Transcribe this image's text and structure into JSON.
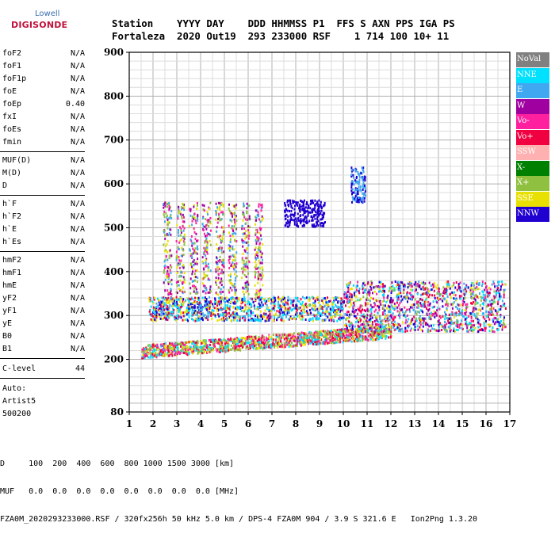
{
  "logo": {
    "line1": "Lowell",
    "line2": "DIGISONDE"
  },
  "header": {
    "line1": "Station    YYYY DAY    DDD HHMMSS P1  FFS S AXN PPS IGA PS",
    "line2": "Fortaleza  2020 Out19  293 233000 RSF    1 714 100 10+ 11"
  },
  "params": {
    "group1": [
      {
        "label": "foF2",
        "value": "N/A"
      },
      {
        "label": "foF1",
        "value": "N/A"
      },
      {
        "label": "foF1p",
        "value": "N/A"
      },
      {
        "label": "foE",
        "value": "N/A"
      },
      {
        "label": "foEp",
        "value": "0.40"
      },
      {
        "label": "fxI",
        "value": "N/A"
      },
      {
        "label": "foEs",
        "value": "N/A"
      },
      {
        "label": "fmin",
        "value": "N/A"
      }
    ],
    "group2": [
      {
        "label": "MUF(D)",
        "value": "N/A"
      },
      {
        "label": "M(D)",
        "value": "N/A"
      },
      {
        "label": "D",
        "value": "N/A"
      }
    ],
    "group3": [
      {
        "label": "h`F",
        "value": "N/A"
      },
      {
        "label": "h`F2",
        "value": "N/A"
      },
      {
        "label": "h`E",
        "value": "N/A"
      },
      {
        "label": "h`Es",
        "value": "N/A"
      }
    ],
    "group4": [
      {
        "label": "hmF2",
        "value": "N/A"
      },
      {
        "label": "hmF1",
        "value": "N/A"
      },
      {
        "label": "hmE",
        "value": "N/A"
      },
      {
        "label": "yF2",
        "value": "N/A"
      },
      {
        "label": "yF1",
        "value": "N/A"
      },
      {
        "label": "yE",
        "value": "N/A"
      },
      {
        "label": "B0",
        "value": "N/A"
      },
      {
        "label": "B1",
        "value": "N/A"
      }
    ],
    "clevel": {
      "label": "C-level",
      "value": "44"
    },
    "auto": [
      "Auto:",
      "Artist5",
      "500200"
    ]
  },
  "legend": [
    {
      "label": "NoVal",
      "color": "#808080"
    },
    {
      "label": "NNE",
      "color": "#00e0ff"
    },
    {
      "label": "E",
      "color": "#40a8f0"
    },
    {
      "label": "W",
      "color": "#a000a0"
    },
    {
      "label": "Vo-",
      "color": "#ff20a0"
    },
    {
      "label": "Vo+",
      "color": "#f00040"
    },
    {
      "label": "SSW",
      "color": "#ffb0b0"
    },
    {
      "label": "X-",
      "color": "#008000"
    },
    {
      "label": "X+",
      "color": "#90c040"
    },
    {
      "label": "SSE",
      "color": "#e8e000"
    },
    {
      "label": "NNW",
      "color": "#2000d0"
    }
  ],
  "footer": {
    "line1": "D     100  200  400  600  800 1000 1500 3000 [km]",
    "line2": "MUF   0.0  0.0  0.0  0.0  0.0  0.0  0.0  0.0 [MHz]",
    "line3": "FZA0M_2020293233000.RSF / 320fx256h 50 kHz 5.0 km / DPS-4 FZA0M 904 / 3.9 S 321.6 E   Ion2Png 1.3.20"
  },
  "chart_data": {
    "type": "scatter",
    "xlim": [
      1,
      17
    ],
    "ylim": [
      80,
      900
    ],
    "x_ticks": [
      1,
      2,
      3,
      4,
      5,
      6,
      7,
      8,
      9,
      10,
      11,
      12,
      13,
      14,
      15,
      16,
      17
    ],
    "y_ticks": [
      80,
      200,
      300,
      400,
      500,
      600,
      700,
      800,
      900
    ],
    "grid": true,
    "clusters": [
      {
        "name": "low-band",
        "x": [
          1.5,
          12
        ],
        "y": [
          205,
          265
        ],
        "colors": [
          "Vo+",
          "Vo-",
          "NNE",
          "SSE",
          "X+"
        ]
      },
      {
        "name": "mid-band",
        "x": [
          1.8,
          10
        ],
        "y": [
          290,
          345
        ],
        "colors": [
          "E",
          "NNE",
          "Vo+",
          "SSE",
          "NNW"
        ]
      },
      {
        "name": "high-columns",
        "x": [
          2.3,
          6.6
        ],
        "y": [
          350,
          560
        ],
        "colors": [
          "SSE",
          "W",
          "E",
          "X+",
          "Vo-"
        ]
      },
      {
        "name": "nnw-cluster-8",
        "x": [
          7.5,
          9.2
        ],
        "y": [
          505,
          565
        ],
        "colors": [
          "NNW"
        ]
      },
      {
        "name": "nnw-cluster-10.5",
        "x": [
          10.3,
          10.9
        ],
        "y": [
          560,
          640
        ],
        "colors": [
          "NNW",
          "E"
        ]
      },
      {
        "name": "right-band",
        "x": [
          10,
          16.8
        ],
        "y": [
          265,
          380
        ],
        "colors": [
          "NNW",
          "E",
          "Vo+",
          "Vo-",
          "X+",
          "W",
          "SSE",
          "NNE"
        ]
      }
    ]
  }
}
